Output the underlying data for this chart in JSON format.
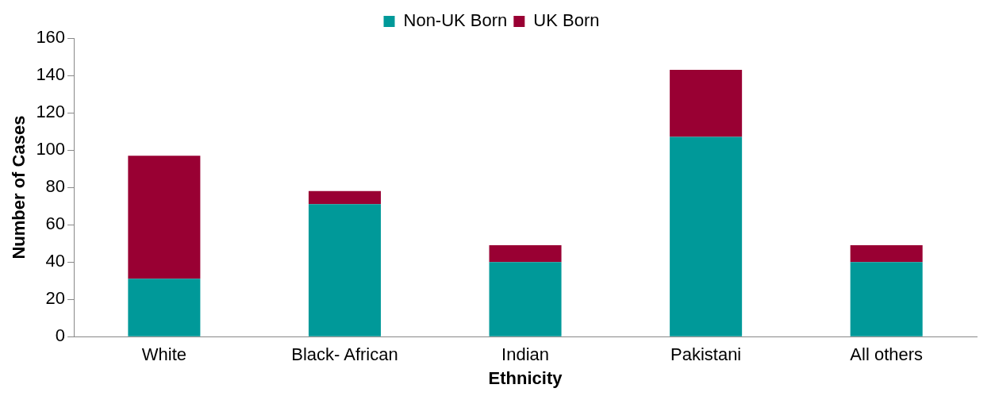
{
  "chart_data": {
    "type": "bar",
    "stacked": true,
    "xlabel": "Ethnicity",
    "ylabel": "Number of Cases",
    "categories": [
      "White",
      "Black- African",
      "Indian",
      "Pakistani",
      "All others"
    ],
    "series": [
      {
        "name": "Non-UK Born",
        "color": "#009999",
        "values": [
          31,
          71,
          40,
          107,
          40
        ]
      },
      {
        "name": "UK Born",
        "color": "#990033",
        "values": [
          66,
          7,
          9,
          36,
          9
        ]
      }
    ],
    "ylim": [
      0,
      160
    ],
    "yticks": [
      0,
      20,
      40,
      60,
      80,
      100,
      120,
      140,
      160
    ],
    "grid": false,
    "legend": "top"
  }
}
